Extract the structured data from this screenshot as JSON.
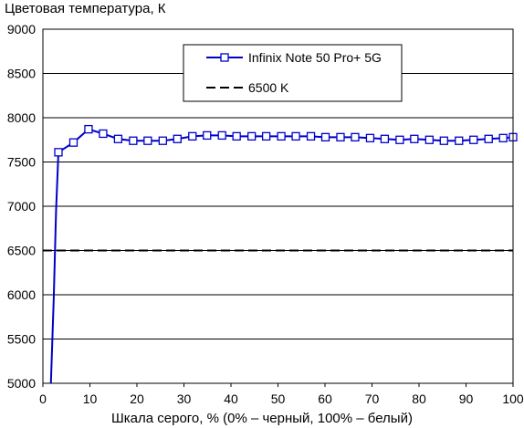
{
  "chart_data": {
    "type": "line",
    "ylabel": "Цветовая температура, К",
    "xlabel": "Шкала серого, % (0% – черный, 100% – белый)",
    "xlim": [
      0,
      100
    ],
    "ylim": [
      5000,
      9000
    ],
    "xticks": [
      0,
      10,
      20,
      30,
      40,
      50,
      60,
      70,
      80,
      90,
      100
    ],
    "yticks": [
      5000,
      5500,
      6000,
      6500,
      7000,
      7500,
      8000,
      8500,
      9000
    ],
    "grid": "horizontal",
    "legend_position": "top-right",
    "series": [
      {
        "name": "Infinix Note 50 Pro+ 5G",
        "color": "#0000c8",
        "marker": "open-square",
        "line_x": [
          1.7,
          2.3,
          2.8,
          3.3
        ],
        "line_y": [
          5000,
          5950,
          6950,
          7610
        ],
        "x": [
          3.3,
          6.5,
          9.7,
          12.8,
          16,
          19.2,
          22.3,
          25.5,
          28.6,
          31.8,
          34.9,
          38.1,
          41.2,
          44.4,
          47.5,
          50.7,
          53.8,
          57,
          60.1,
          63.3,
          66.4,
          69.6,
          72.7,
          75.9,
          79,
          82.2,
          85.3,
          88.5,
          91.6,
          94.8,
          97.9,
          100
        ],
        "y": [
          7610,
          7720,
          7870,
          7820,
          7760,
          7740,
          7740,
          7740,
          7760,
          7790,
          7800,
          7800,
          7790,
          7790,
          7790,
          7790,
          7790,
          7790,
          7780,
          7780,
          7780,
          7770,
          7760,
          7750,
          7760,
          7750,
          7740,
          7740,
          7750,
          7760,
          7770,
          7780
        ]
      },
      {
        "name": "6500 K",
        "color": "#000000",
        "style": "dashed",
        "x": [
          0,
          100
        ],
        "y": [
          6500,
          6500
        ]
      }
    ]
  }
}
